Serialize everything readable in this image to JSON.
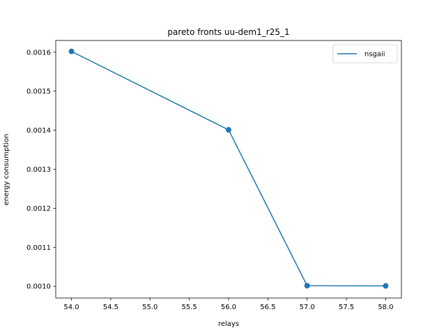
{
  "chart_data": {
    "type": "line",
    "title": "pareto fronts uu-dem1_r25_1",
    "xlabel": "relays",
    "ylabel": "energy consumption",
    "xlim": [
      53.8,
      58.2
    ],
    "ylim": [
      0.00097,
      0.00163
    ],
    "xticks": [
      "54.0",
      "54.5",
      "55.0",
      "55.5",
      "56.0",
      "56.5",
      "57.0",
      "57.5",
      "58.0"
    ],
    "yticks": [
      "0.0010",
      "0.0011",
      "0.0012",
      "0.0013",
      "0.0014",
      "0.0015",
      "0.0016"
    ],
    "grid": false,
    "legend_position": "top-right",
    "series": [
      {
        "name": "nsgaii",
        "color": "#1f77b4",
        "marker": "circle",
        "x": [
          54,
          56,
          57,
          58
        ],
        "y": [
          0.001602,
          0.001401,
          0.0010015,
          0.001001
        ]
      }
    ]
  }
}
